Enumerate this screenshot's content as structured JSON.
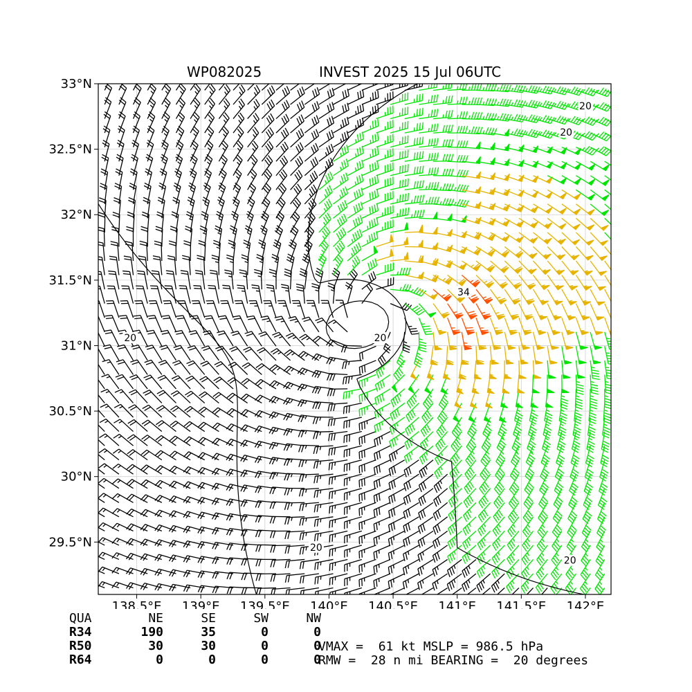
{
  "header": {
    "storm_id": "WP082025",
    "title": "INVEST 2025 15 Jul 06UTC"
  },
  "chart_data": {
    "type": "wind-barb-map",
    "lon_range": [
      138.2,
      142.2
    ],
    "lat_range": [
      29.1,
      33.0
    ],
    "x_ticks": [
      {
        "value": 138.5,
        "label": "138.5°E"
      },
      {
        "value": 139.0,
        "label": "139°E"
      },
      {
        "value": 139.5,
        "label": "139.5°E"
      },
      {
        "value": 140.0,
        "label": "140°E"
      },
      {
        "value": 140.5,
        "label": "140.5°E"
      },
      {
        "value": 141.0,
        "label": "141°E"
      },
      {
        "value": 141.5,
        "label": "141.5°E"
      },
      {
        "value": 142.0,
        "label": "142°E"
      }
    ],
    "y_ticks": [
      {
        "value": 29.5,
        "label": "29.5°N"
      },
      {
        "value": 30.0,
        "label": "30°N"
      },
      {
        "value": 30.5,
        "label": "30.5°N"
      },
      {
        "value": 31.0,
        "label": "31°N"
      },
      {
        "value": 31.5,
        "label": "31.5°N"
      },
      {
        "value": 32.0,
        "label": "32°N"
      },
      {
        "value": 32.5,
        "label": "32.5°N"
      },
      {
        "value": 33.0,
        "label": "33°N"
      }
    ],
    "grid": true,
    "center": {
      "lon": 140.35,
      "lat": 31.2
    },
    "vmax_kt": 61,
    "rmw_nmi": 28,
    "speed_colors": [
      {
        "min_kt": 0,
        "color": "#000000"
      },
      {
        "min_kt": 34,
        "color": "#00e600"
      },
      {
        "min_kt": 50,
        "color": "#e6b400"
      },
      {
        "min_kt": 64,
        "color": "#ff5000"
      }
    ],
    "contour_labels": [
      {
        "text": "20",
        "lon": 142.0,
        "lat": 32.82
      },
      {
        "text": "20",
        "lon": 141.85,
        "lat": 32.62
      },
      {
        "text": "34",
        "lon": 141.05,
        "lat": 31.4
      },
      {
        "text": "20",
        "lon": 140.4,
        "lat": 31.05
      },
      {
        "text": "20",
        "lon": 138.45,
        "lat": 31.05
      },
      {
        "text": "20",
        "lon": 139.9,
        "lat": 29.45
      },
      {
        "text": "20",
        "lon": 141.88,
        "lat": 29.35
      }
    ]
  },
  "radii_table": {
    "header": [
      "QUA",
      "NE",
      "SE",
      "SW",
      "NW"
    ],
    "rows": [
      {
        "label": "R34",
        "values": [
          "190",
          "35",
          "0",
          "0"
        ]
      },
      {
        "label": "R50",
        "values": [
          "30",
          "30",
          "0",
          "0"
        ]
      },
      {
        "label": "R64",
        "values": [
          "0",
          "0",
          "0",
          "0"
        ]
      }
    ]
  },
  "summary": {
    "line1": "VMAX =  61 kt MSLP = 986.5 hPa",
    "line2": "RMW =  28 n mi BEARING =  20 degrees"
  }
}
